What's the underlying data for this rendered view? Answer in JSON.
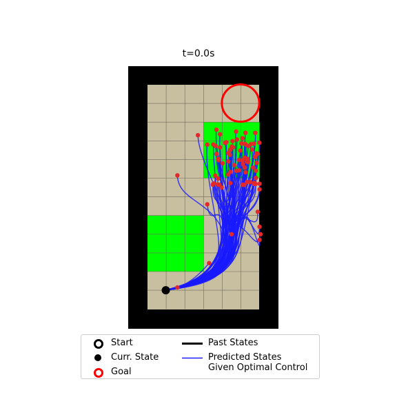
{
  "plot": {
    "title": "t=0.0s",
    "grid": {
      "cols": 6,
      "rows": 12
    },
    "colors": {
      "wall": "#000000",
      "floor": "#c8bfa0",
      "grid_line": "#6f6a5a",
      "region": "#00ff00",
      "goal": "#ff0000",
      "trajectory": "#1a1aff",
      "endpoint": "#e3282b",
      "current_state": "#000000"
    },
    "regions": [
      {
        "name": "upper-region",
        "col": 3,
        "row": 2,
        "width": 3,
        "height": 3
      },
      {
        "name": "lower-region",
        "col": 0,
        "row": 7,
        "width": 3,
        "height": 3
      }
    ],
    "goal": {
      "col": 4.98,
      "row": 0.98,
      "radius": 1.0
    },
    "current_state": {
      "col": 0.98,
      "row": 11.0
    },
    "trajectory_count": 70,
    "trajectory_stragglers": [
      {
        "col": 1.6,
        "row": 10.85
      },
      {
        "col": 3.3,
        "row": 9.55
      },
      {
        "col": 4.5,
        "row": 8.0
      },
      {
        "col": 3.2,
        "row": 6.4
      },
      {
        "col": 1.6,
        "row": 4.85
      },
      {
        "col": 2.7,
        "row": 2.7
      },
      {
        "col": 3.2,
        "row": 3.2
      },
      {
        "col": 6.0,
        "row": 8.3
      },
      {
        "col": 6.05,
        "row": 8.0
      },
      {
        "col": 6.0,
        "row": 7.6
      },
      {
        "col": 5.9,
        "row": 6.8
      },
      {
        "col": 6.0,
        "row": 5.6
      },
      {
        "col": 6.0,
        "row": 5.3
      },
      {
        "col": 5.9,
        "row": 3.7
      }
    ]
  },
  "legend": {
    "start": "Start",
    "current_state": "Curr. State",
    "goal": "Goal",
    "past_states": "Past States",
    "predicted_states": "Predicted States\nGiven Optimal Control"
  }
}
